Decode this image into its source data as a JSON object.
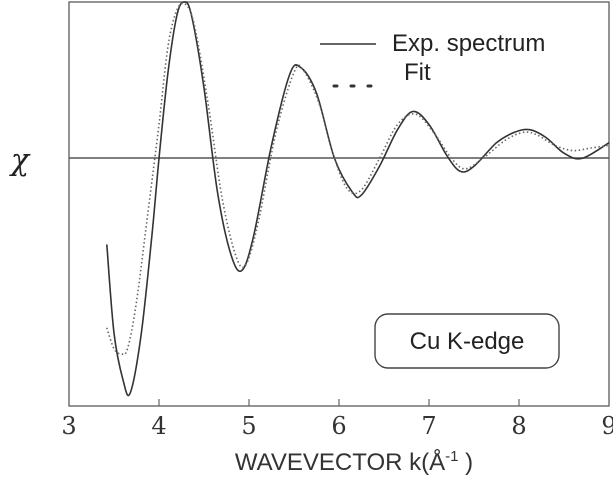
{
  "chart_data": {
    "type": "line",
    "title": "",
    "xlabel": "WAVEVECTOR  k(Å",
    "xlabel_sup": "-1",
    "xlabel_end": " )",
    "ylabel": "χ",
    "xlim": [
      3,
      9
    ],
    "ylim": [
      -1.0,
      0.55
    ],
    "xticks": [
      "3",
      "4",
      "5",
      "6",
      "7",
      "8",
      "9"
    ],
    "annotation": "Cu K-edge",
    "legend": [
      {
        "label": "Exp. spectrum",
        "style": "solid"
      },
      {
        "label": "Fit",
        "style": "dotted"
      }
    ],
    "series": [
      {
        "name": "Exp. spectrum",
        "style": "solid",
        "color": "#333333",
        "x": [
          3.42,
          3.5,
          3.6,
          3.68,
          3.8,
          3.92,
          4.0,
          4.1,
          4.2,
          4.28,
          4.36,
          4.5,
          4.65,
          4.8,
          4.92,
          5.05,
          5.25,
          5.45,
          5.57,
          5.75,
          5.95,
          6.15,
          6.25,
          6.45,
          6.65,
          6.82,
          7.0,
          7.2,
          7.35,
          7.5,
          7.75,
          7.95,
          8.12,
          8.3,
          8.5,
          8.7,
          9.0
        ],
        "y": [
          -0.38,
          -0.72,
          -0.9,
          -0.95,
          -0.73,
          -0.35,
          -0.05,
          0.28,
          0.5,
          0.55,
          0.5,
          0.22,
          -0.18,
          -0.42,
          -0.48,
          -0.35,
          0.0,
          0.27,
          0.3,
          0.2,
          -0.05,
          -0.18,
          -0.19,
          -0.08,
          0.06,
          0.13,
          0.08,
          -0.04,
          -0.1,
          -0.08,
          0.01,
          0.05,
          0.06,
          0.03,
          -0.03,
          -0.05,
          0.01
        ]
      },
      {
        "name": "Fit",
        "style": "dotted",
        "color": "#666666",
        "x": [
          3.42,
          3.5,
          3.58,
          3.65,
          3.75,
          3.88,
          4.0,
          4.1,
          4.2,
          4.3,
          4.4,
          4.55,
          4.7,
          4.85,
          4.96,
          5.1,
          5.3,
          5.5,
          5.6,
          5.78,
          5.95,
          6.1,
          6.25,
          6.45,
          6.65,
          6.85,
          7.05,
          7.25,
          7.4,
          7.6,
          7.85,
          8.05,
          8.2,
          8.4,
          8.6,
          8.8,
          9.0
        ],
        "y": [
          -0.7,
          -0.78,
          -0.8,
          -0.78,
          -0.6,
          -0.25,
          0.08,
          0.38,
          0.52,
          0.54,
          0.45,
          0.15,
          -0.2,
          -0.42,
          -0.46,
          -0.3,
          0.05,
          0.28,
          0.29,
          0.16,
          -0.05,
          -0.17,
          -0.17,
          -0.05,
          0.08,
          0.12,
          0.05,
          -0.05,
          -0.09,
          -0.05,
          0.02,
          0.05,
          0.04,
          0.0,
          -0.02,
          -0.01,
          0.0
        ]
      }
    ]
  }
}
